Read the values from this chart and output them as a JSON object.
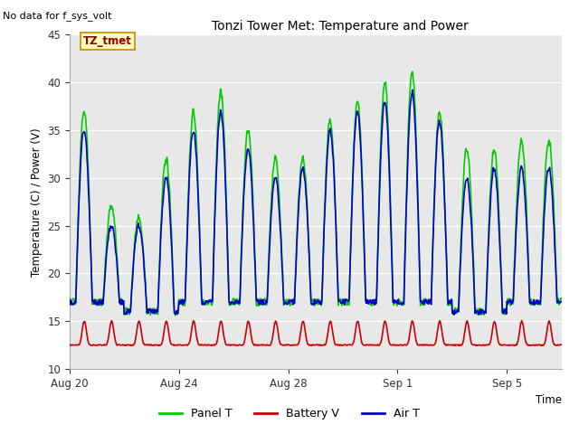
{
  "title": "Tonzi Tower Met: Temperature and Power",
  "no_data_text": "No data for f_sys_volt",
  "tz_label": "TZ_tmet",
  "ylabel": "Temperature (C) / Power (V)",
  "xlabel": "Time",
  "ylim": [
    10,
    45
  ],
  "plot_bg_color": "#e8e8e8",
  "fig_bg_color": "#ffffff",
  "panel_t_color": "#00cc00",
  "battery_v_color": "#cc0000",
  "air_t_color": "#0000cc",
  "xtick_labels": [
    "Aug 20",
    "Aug 24",
    "Aug 28",
    "Sep 1",
    "Sep 5"
  ],
  "ytick_values": [
    10,
    15,
    20,
    25,
    30,
    35,
    40,
    45
  ],
  "legend_entries": [
    "Panel T",
    "Battery V",
    "Air T"
  ],
  "line_width": 1.2
}
